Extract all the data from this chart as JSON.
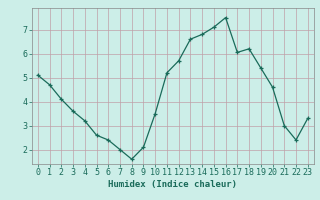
{
  "x": [
    0,
    1,
    2,
    3,
    4,
    5,
    6,
    7,
    8,
    9,
    10,
    11,
    12,
    13,
    14,
    15,
    16,
    17,
    18,
    19,
    20,
    21,
    22,
    23
  ],
  "y": [
    5.1,
    4.7,
    4.1,
    3.6,
    3.2,
    2.6,
    2.4,
    2.0,
    1.6,
    2.1,
    3.5,
    5.2,
    5.7,
    6.6,
    6.8,
    7.1,
    7.5,
    6.05,
    6.2,
    5.4,
    4.6,
    3.0,
    2.4,
    3.3
  ],
  "line_color": "#1a6b5a",
  "marker": "+",
  "marker_size": 3,
  "bg_color": "#cceee8",
  "grid_color": "#c0a0a8",
  "xlabel": "Humidex (Indice chaleur)",
  "ylim": [
    1.4,
    7.9
  ],
  "xlim": [
    -0.5,
    23.5
  ],
  "yticks": [
    2,
    3,
    4,
    5,
    6,
    7
  ],
  "xticks": [
    0,
    1,
    2,
    3,
    4,
    5,
    6,
    7,
    8,
    9,
    10,
    11,
    12,
    13,
    14,
    15,
    16,
    17,
    18,
    19,
    20,
    21,
    22,
    23
  ],
  "label_fontsize": 6.5,
  "tick_fontsize": 6.0,
  "spine_color": "#888888"
}
